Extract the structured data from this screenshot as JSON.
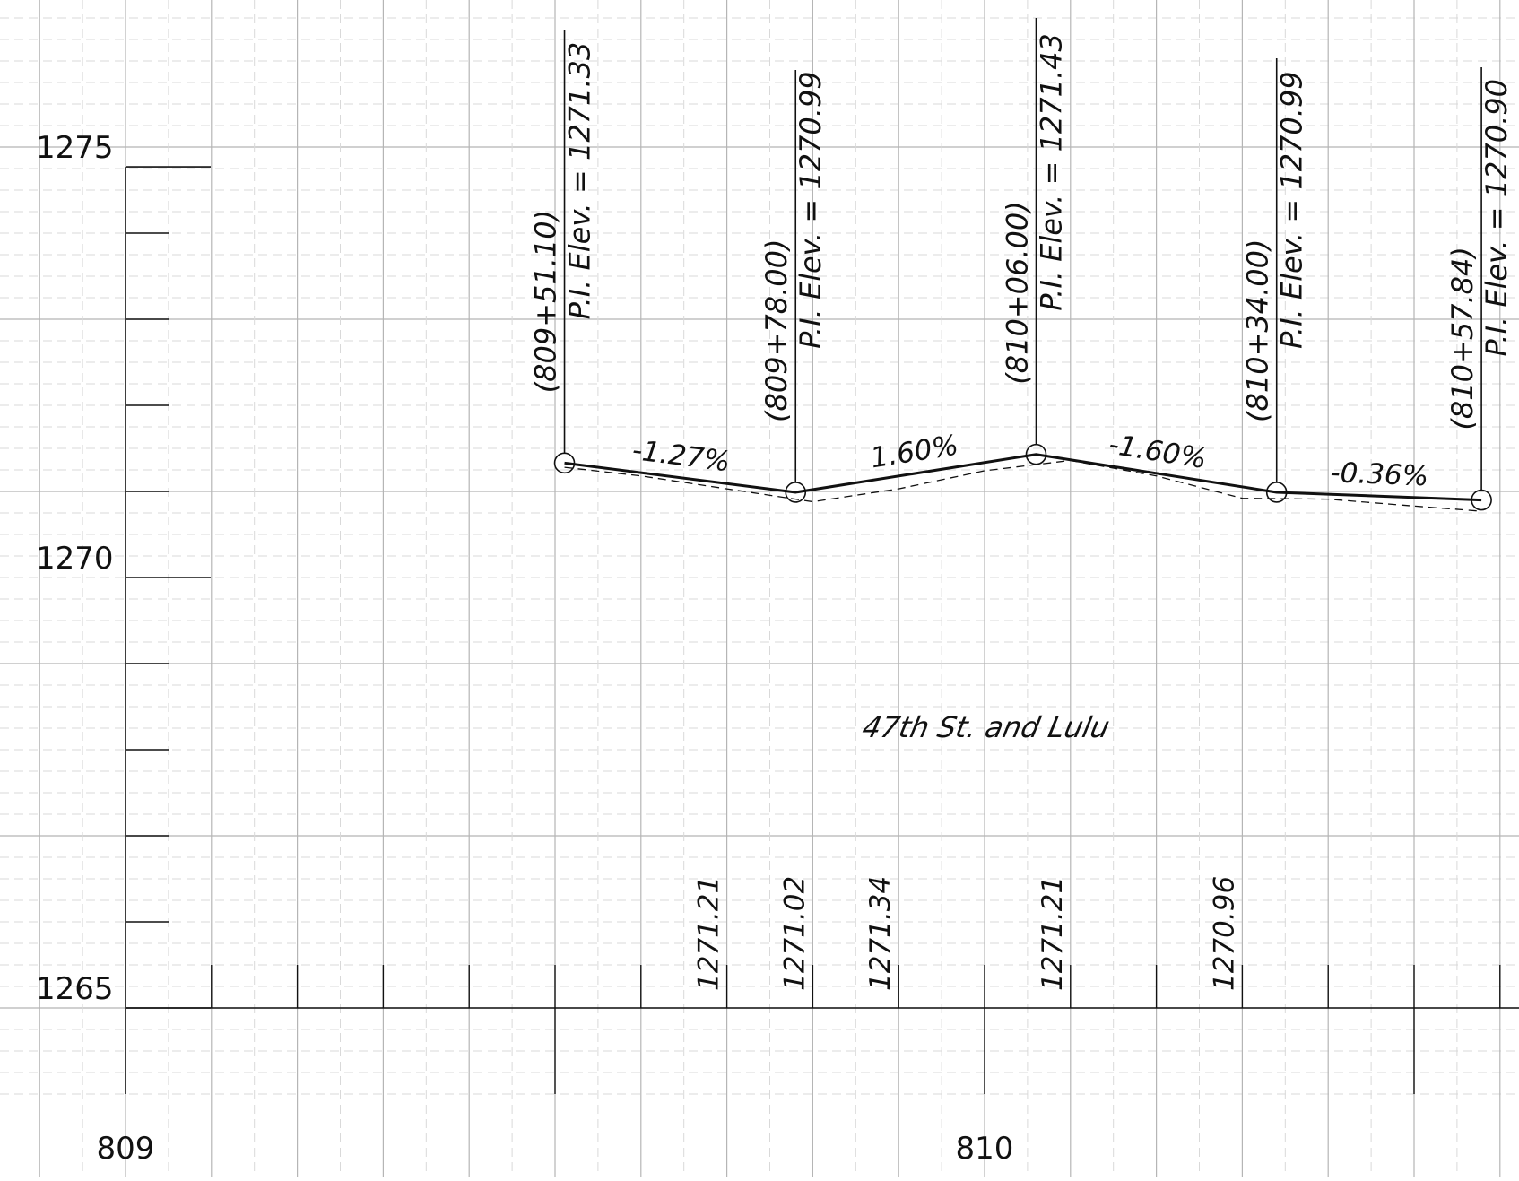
{
  "drawing": {
    "title": "47th St. and Lulu",
    "colors": {
      "grid_major": "#b5b5b5",
      "grid_minor": "#d9d9d9",
      "ink": "#111111",
      "paper": "#ffffff"
    }
  },
  "elevation_axis": {
    "labels": [
      "1275",
      "1270",
      "1265"
    ],
    "values": [
      1275,
      1270,
      1265
    ]
  },
  "station_axis": {
    "labels": [
      "809",
      "810"
    ]
  },
  "pis": [
    {
      "station": "(809+51.10)",
      "elevation_label": "P.I. Elev. = 1271.33",
      "sta": 80951.1,
      "elev": 1271.33
    },
    {
      "station": "(809+78.00)",
      "elevation_label": "P.I. Elev. = 1270.99",
      "sta": 80978.0,
      "elev": 1270.99
    },
    {
      "station": "(810+06.00)",
      "elevation_label": "P.I. Elev. = 1271.43",
      "sta": 81006.0,
      "elev": 1271.43
    },
    {
      "station": "(810+34.00)",
      "elevation_label": "P.I. Elev. = 1270.99",
      "sta": 81034.0,
      "elev": 1270.99
    },
    {
      "station": "(810+57.84)",
      "elevation_label": "P.I. Elev. = 1270.90",
      "sta": 81057.84,
      "elev": 1270.9
    }
  ],
  "grades": [
    "-1.27%",
    "1.60%",
    "-1.60%",
    "-0.36%"
  ],
  "existing_ground": {
    "points": [
      [
        80951.1,
        1271.28
      ],
      [
        80960.0,
        1271.18
      ],
      [
        80970.0,
        1271.03
      ],
      [
        80980.0,
        1270.88
      ],
      [
        80990.0,
        1271.03
      ],
      [
        81000.0,
        1271.24
      ],
      [
        81010.0,
        1271.36
      ],
      [
        81020.0,
        1271.18
      ],
      [
        81030.0,
        1270.92
      ],
      [
        81040.0,
        1270.91
      ],
      [
        81050.0,
        1270.83
      ],
      [
        81057.84,
        1270.77
      ]
    ],
    "labels": [
      "1271.21",
      "1271.02",
      "1271.34",
      "1271.21",
      "1270.96"
    ]
  },
  "chart_data": {
    "type": "line",
    "title": "47th St. and Lulu",
    "xlabel": "",
    "ylabel": "",
    "ylim": [
      1264,
      1276
    ],
    "series": [
      {
        "x": [
          80951.1,
          80978.0,
          81006.0,
          81034.0,
          81057.84
        ],
        "values": [
          1271.33,
          1270.99,
          1271.43,
          1270.99,
          1270.9
        ]
      }
    ]
  }
}
